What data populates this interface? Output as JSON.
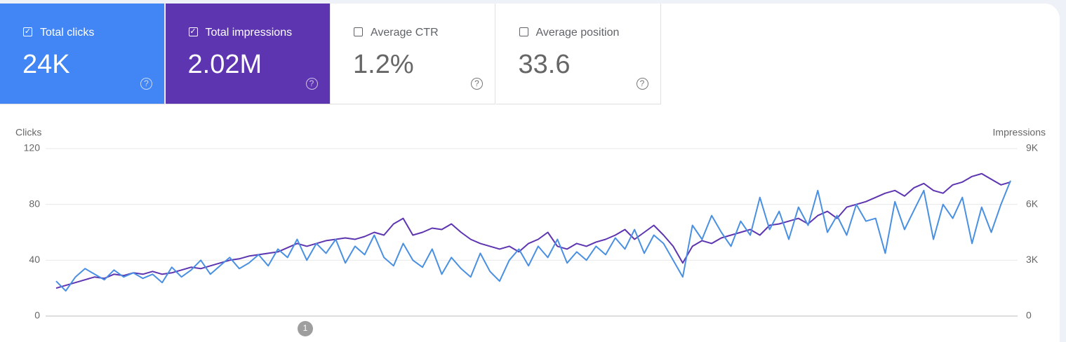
{
  "cards": [
    {
      "label": "Total clicks",
      "value": "24K",
      "checked": true,
      "color": "#4285f4"
    },
    {
      "label": "Total impressions",
      "value": "2.02M",
      "checked": true,
      "color": "#5e35b1"
    },
    {
      "label": "Average CTR",
      "value": "1.2%",
      "checked": false,
      "color": "#ffffff"
    },
    {
      "label": "Average position",
      "value": "33.6",
      "checked": false,
      "color": "#ffffff"
    }
  ],
  "chart_data": {
    "type": "line",
    "y_label": "Clicks",
    "y2_label": "Impressions",
    "ylim": [
      0,
      120
    ],
    "yticks": [
      0,
      40,
      80,
      120
    ],
    "y2lim": [
      0,
      9000
    ],
    "y2ticks": [
      {
        "value": 0,
        "label": "0"
      },
      {
        "value": 3000,
        "label": "3K"
      },
      {
        "value": 6000,
        "label": "6K"
      },
      {
        "value": 9000,
        "label": "9K"
      }
    ],
    "grid": true,
    "annotation": "1",
    "series": [
      {
        "name": "Total clicks",
        "color": "#4a90e2",
        "values": [
          25,
          18,
          28,
          34,
          30,
          26,
          33,
          28,
          31,
          27,
          30,
          24,
          35,
          28,
          33,
          40,
          30,
          36,
          42,
          34,
          38,
          44,
          36,
          48,
          42,
          55,
          40,
          52,
          45,
          55,
          38,
          50,
          44,
          58,
          42,
          36,
          52,
          40,
          35,
          48,
          30,
          42,
          34,
          28,
          45,
          32,
          25,
          40,
          48,
          36,
          50,
          42,
          55,
          38,
          46,
          40,
          50,
          44,
          56,
          48,
          62,
          45,
          58,
          52,
          40,
          28,
          65,
          55,
          72,
          60,
          50,
          68,
          58,
          85,
          62,
          75,
          55,
          78,
          65,
          90,
          60,
          72,
          58,
          80,
          68,
          70,
          45,
          82,
          62,
          76,
          90,
          55,
          80,
          70,
          85,
          52,
          78,
          60,
          80,
          97
        ]
      },
      {
        "name": "Total impressions",
        "color": "#5e35b1",
        "axis": "y2",
        "values": [
          1500,
          1650,
          1800,
          1950,
          2100,
          2025,
          2250,
          2175,
          2325,
          2250,
          2400,
          2250,
          2325,
          2475,
          2625,
          2550,
          2700,
          2850,
          3000,
          3075,
          3225,
          3300,
          3375,
          3450,
          3675,
          3900,
          3750,
          3900,
          4050,
          4125,
          4200,
          4125,
          4275,
          4500,
          4350,
          4950,
          5250,
          4350,
          4500,
          4725,
          4650,
          4950,
          4500,
          4125,
          3900,
          3750,
          3600,
          3750,
          3450,
          3900,
          4125,
          4500,
          3750,
          3600,
          3900,
          3750,
          3975,
          4125,
          4350,
          4650,
          4125,
          4500,
          4875,
          4350,
          3750,
          2850,
          3750,
          4050,
          3900,
          4200,
          4350,
          4500,
          4650,
          4350,
          4875,
          4950,
          5100,
          5250,
          4950,
          5400,
          5625,
          5250,
          5850,
          6000,
          6150,
          6375,
          6600,
          6750,
          6450,
          6900,
          7125,
          6750,
          6600,
          7050,
          7200,
          7500,
          7650,
          7350,
          7050,
          7200
        ]
      }
    ]
  }
}
